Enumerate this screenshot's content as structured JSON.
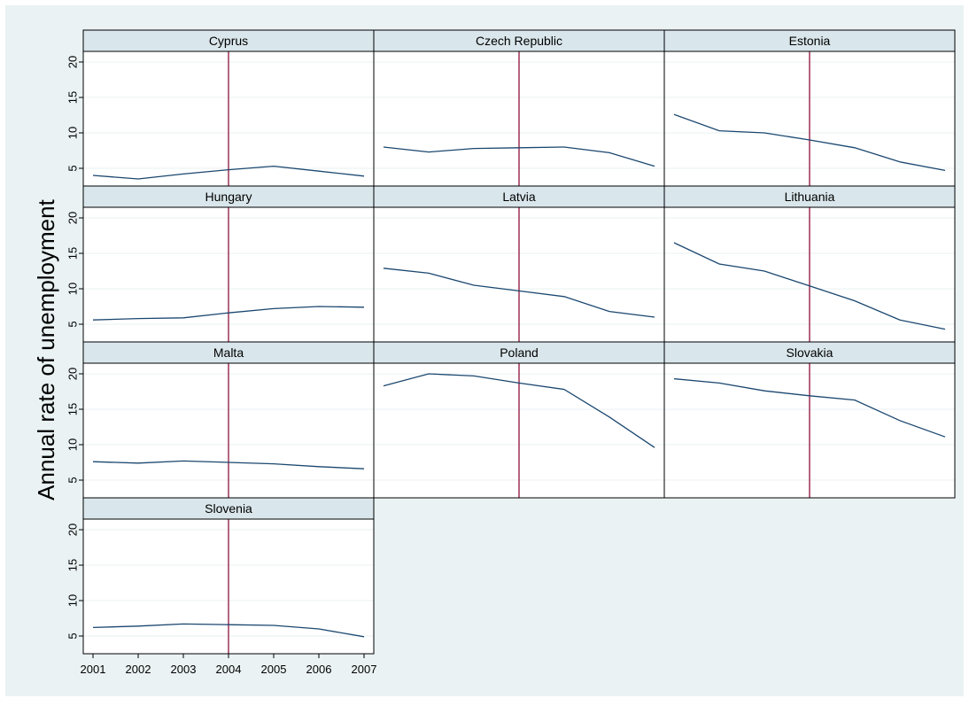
{
  "chart_data": {
    "type": "line",
    "layout": "small-multiples",
    "ylabel": "Annual rate of unemployment",
    "x": [
      2001,
      2002,
      2003,
      2004,
      2005,
      2006,
      2007
    ],
    "xticks": [
      "2001",
      "2002",
      "2003",
      "2004",
      "2005",
      "2006",
      "2007"
    ],
    "yticks": [
      "5",
      "10",
      "15",
      "20"
    ],
    "ylim": [
      2.5,
      21.5
    ],
    "xlim": [
      2001,
      2007
    ],
    "reference_line_x": 2004,
    "grid": true,
    "colors": {
      "outer_background": "#eaf2f3",
      "plot_background": "#ffffff",
      "strip_background": "#d9e6eb",
      "series_line": "#1a476f",
      "reference_line": "#90103a",
      "grid_line": "#eaf2f3"
    },
    "panels": [
      {
        "title": "Cyprus",
        "values": [
          4.0,
          3.5,
          4.2,
          4.8,
          5.3,
          4.6,
          3.9
        ]
      },
      {
        "title": "Czech Republic",
        "values": [
          8.0,
          7.3,
          7.8,
          7.9,
          8.0,
          7.2,
          5.3
        ]
      },
      {
        "title": "Estonia",
        "values": [
          12.6,
          10.3,
          10.0,
          9.0,
          7.9,
          5.9,
          4.7
        ]
      },
      {
        "title": "Hungary",
        "values": [
          5.6,
          5.8,
          5.9,
          6.6,
          7.2,
          7.5,
          7.4
        ]
      },
      {
        "title": "Latvia",
        "values": [
          12.9,
          12.2,
          10.5,
          9.7,
          8.9,
          6.8,
          6.0
        ]
      },
      {
        "title": "Lithuania",
        "values": [
          16.5,
          13.5,
          12.5,
          10.4,
          8.3,
          5.6,
          4.3
        ]
      },
      {
        "title": "Malta",
        "values": [
          7.6,
          7.4,
          7.7,
          7.5,
          7.3,
          6.9,
          6.6
        ]
      },
      {
        "title": "Poland",
        "values": [
          18.3,
          20.0,
          19.7,
          18.7,
          17.8,
          13.9,
          9.6
        ]
      },
      {
        "title": "Slovakia",
        "values": [
          19.3,
          18.7,
          17.6,
          16.9,
          16.3,
          13.4,
          11.1
        ]
      },
      {
        "title": "Slovenia",
        "values": [
          6.2,
          6.4,
          6.7,
          6.6,
          6.5,
          6.0,
          4.9
        ]
      }
    ]
  }
}
